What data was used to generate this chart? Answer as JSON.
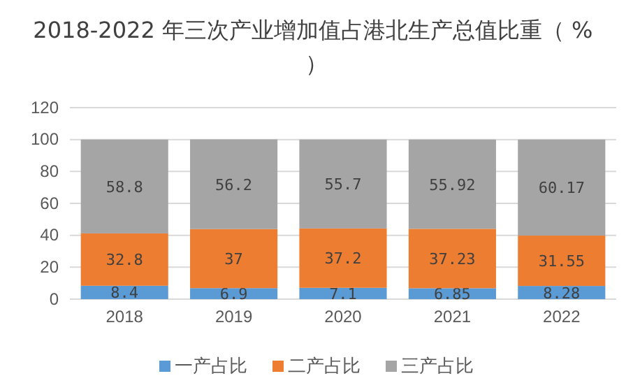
{
  "chart_data": {
    "type": "bar",
    "title": "2018-2022 年三次产业增加值占港北生产总值比重（ % ）",
    "categories": [
      "2018",
      "2019",
      "2020",
      "2021",
      "2022"
    ],
    "stacked": true,
    "series": [
      {
        "name": "一产占比",
        "color": "#5b9bd5",
        "values": [
          8.4,
          6.9,
          7.1,
          6.85,
          8.28
        ]
      },
      {
        "name": "二产占比",
        "color": "#ed7d31",
        "values": [
          32.8,
          37,
          37.2,
          37.23,
          31.55
        ]
      },
      {
        "name": "三产占比",
        "color": "#a5a5a5",
        "values": [
          58.8,
          56.2,
          55.7,
          55.92,
          60.17
        ]
      }
    ],
    "ylim": [
      0,
      120
    ],
    "yticks": [
      0,
      20,
      40,
      60,
      80,
      100,
      120
    ],
    "grid": "y",
    "legend": "bottom",
    "data_labels": true
  }
}
